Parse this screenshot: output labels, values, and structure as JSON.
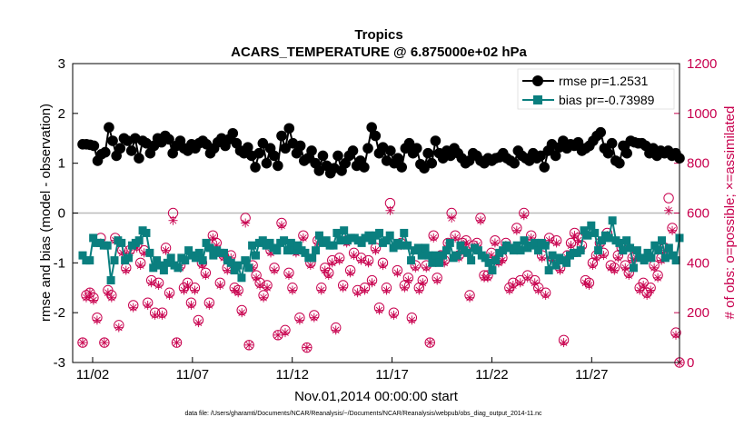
{
  "chart_data": {
    "type": "line",
    "title": "Tropics",
    "subtitle": "ACARS_TEMPERATURE @ 6.875000e+02 hPa",
    "xlabel": "Nov.01,2014 00:00:00 start",
    "ylabel": "rmse and bias (model - observation)",
    "ylabel_right": "# of obs: o=possible; ×=assimilated",
    "footnote": "data file: /Users/gharamti/Documents/NCAR/Reanalysis/~/Documents/NCAR/Reanalysis/webpub/obs_diag_output_2014-11.nc",
    "xlim": [
      0.5,
      30.9
    ],
    "ylim": [
      -3,
      3
    ],
    "ylim_right": [
      0,
      1200
    ],
    "x_ticks": [
      {
        "v": 1.5,
        "label": "11/02"
      },
      {
        "v": 6.5,
        "label": "11/07"
      },
      {
        "v": 11.5,
        "label": "11/12"
      },
      {
        "v": 16.5,
        "label": "11/17"
      },
      {
        "v": 21.5,
        "label": "11/22"
      },
      {
        "v": 26.5,
        "label": "11/27"
      }
    ],
    "y_ticks": [
      {
        "v": -3,
        "label": "-3"
      },
      {
        "v": -2,
        "label": "-2"
      },
      {
        "v": -1,
        "label": "-1"
      },
      {
        "v": 0,
        "label": "0"
      },
      {
        "v": 1,
        "label": "1"
      },
      {
        "v": 2,
        "label": "2"
      },
      {
        "v": 3,
        "label": "3"
      }
    ],
    "y_ticks_right": [
      {
        "v": 0,
        "label": "0"
      },
      {
        "v": 200,
        "label": "200"
      },
      {
        "v": 400,
        "label": "400"
      },
      {
        "v": 600,
        "label": "600"
      },
      {
        "v": 800,
        "label": "800"
      },
      {
        "v": 1000,
        "label": "1000"
      },
      {
        "v": 1200,
        "label": "1200"
      }
    ],
    "series": [
      {
        "name": "rmse pr=1.2531",
        "color": "#000000",
        "marker": "circle",
        "values": [
          1.38,
          1.38,
          1.37,
          1.35,
          1.05,
          1.18,
          1.22,
          1.72,
          1.45,
          1.15,
          1.3,
          1.5,
          1.45,
          1.25,
          1.5,
          1.1,
          1.45,
          1.4,
          1.2,
          1.35,
          1.5,
          1.42,
          1.55,
          1.48,
          1.2,
          1.35,
          1.45,
          1.3,
          1.25,
          1.38,
          1.3,
          1.4,
          1.45,
          1.38,
          1.2,
          1.3,
          1.42,
          1.5,
          1.35,
          1.48,
          1.6,
          1.4,
          1.25,
          1.2,
          1.32,
          1.15,
          0.92,
          1.2,
          1.4,
          1.0,
          1.3,
          1.15,
          0.95,
          1.55,
          1.3,
          1.7,
          1.4,
          1.2,
          1.35,
          1.05,
          1.1,
          1.25,
          1.0,
          0.85,
          1.15,
          0.95,
          0.8,
          0.9,
          1.15,
          0.85,
          1.0,
          1.15,
          1.25,
          0.95,
          1.05,
          0.92,
          1.3,
          1.72,
          1.55,
          1.2,
          1.32,
          1.05,
          1.25,
          1.0,
          1.1,
          0.92,
          1.3,
          1.4,
          1.2,
          1.3,
          0.98,
          0.9,
          1.2,
          1.0,
          1.45,
          1.2,
          1.1,
          1.25,
          1.15,
          1.3,
          1.2,
          1.1,
          1.0,
          1.05,
          1.2,
          1.15,
          1.05,
          1.0,
          1.1,
          1.05,
          1.1,
          1.12,
          1.2,
          1.1,
          1.05,
          1.0,
          1.25,
          1.15,
          1.1,
          1.05,
          1.2,
          1.1,
          1.15,
          0.92,
          1.25,
          1.38,
          1.15,
          1.32,
          1.45,
          1.3,
          1.38,
          1.35,
          1.42,
          1.25,
          1.3,
          1.35,
          1.45,
          1.55,
          1.62,
          1.3,
          1.2,
          1.4,
          1.05,
          1.0,
          1.35,
          1.2,
          1.45,
          1.42,
          1.4,
          1.4,
          1.35,
          1.2,
          1.3,
          1.15,
          1.25,
          1.2,
          1.25,
          1.15,
          1.2,
          1.1
        ]
      },
      {
        "name": "bias pr=-0.73989",
        "color": "#0a7f7f",
        "marker": "square",
        "values": [
          -0.85,
          -0.95,
          -0.95,
          -0.5,
          -0.6,
          -0.6,
          -0.65,
          -0.65,
          -1.35,
          -0.95,
          -0.55,
          -0.6,
          -0.95,
          -0.9,
          -0.65,
          -0.6,
          -0.55,
          -0.35,
          -0.4,
          -0.8,
          -1.1,
          -0.95,
          -1.05,
          -1.15,
          -1.0,
          -0.9,
          -1.05,
          -1.1,
          -0.9,
          -0.95,
          -0.75,
          -0.85,
          -0.9,
          -0.8,
          -0.95,
          -0.6,
          -0.7,
          -0.85,
          -0.75,
          -0.8,
          -0.8,
          -0.95,
          -1.0,
          -1.15,
          -1.05,
          -1.3,
          -0.95,
          -1.1,
          -0.65,
          -0.85,
          -0.6,
          -0.55,
          -0.65,
          -0.6,
          -0.7,
          -0.75,
          -0.6,
          -0.55,
          -0.75,
          -0.6,
          -0.75,
          -0.65,
          -0.75,
          -0.8,
          -0.9,
          -0.9,
          -0.75,
          -0.45,
          -0.6,
          -0.55,
          -0.65,
          -0.65,
          -0.4,
          -0.55,
          -0.35,
          -0.55,
          -0.5,
          -0.5,
          -0.55,
          -0.6,
          -0.5,
          -0.45,
          -0.55,
          -0.45,
          -0.4,
          -0.6,
          -0.55,
          -0.45,
          -0.7,
          -0.6,
          -0.65,
          -0.4,
          -0.65,
          -0.95,
          -0.75,
          -0.7,
          -0.85,
          -0.7,
          -0.85,
          -1.0,
          -0.85,
          -1.0,
          -0.85,
          -0.75,
          -0.6,
          -0.9,
          -0.85,
          -0.65,
          -0.75,
          -0.8,
          -0.95,
          -0.7,
          -0.75,
          -0.85,
          -0.9,
          -1.0,
          -1.15,
          -0.95,
          -0.8,
          -0.75,
          -0.65,
          -0.7,
          -0.75,
          -0.65,
          -0.75,
          -0.55,
          -0.7,
          -0.65,
          -0.6,
          -0.75,
          -0.6,
          -0.65,
          -1.15,
          -0.85,
          -1.05,
          -0.9,
          -0.95,
          -1.0,
          -0.85,
          -0.8,
          -0.8,
          -0.75,
          -0.35,
          -0.45,
          -0.25,
          -0.4,
          -0.75,
          -0.55,
          -0.45,
          -0.5,
          -0.15,
          -0.55,
          -0.6,
          -0.75,
          -0.55,
          -0.7,
          -1.1,
          -0.75,
          -0.9,
          -0.95,
          -0.8,
          -0.9,
          -0.65,
          -0.75,
          -0.55,
          -0.9,
          -0.7,
          -0.85,
          -0.95,
          -0.5
        ]
      }
    ],
    "obs_possible": [
      80,
      270,
      280,
      260,
      180,
      500,
      80,
      290,
      270,
      500,
      150,
      450,
      380,
      450,
      230,
      470,
      400,
      450,
      240,
      330,
      200,
      320,
      200,
      460,
      280,
      600,
      80,
      390,
      300,
      320,
      240,
      300,
      170,
      400,
      360,
      240,
      510,
      480,
      320,
      430,
      380,
      430,
      300,
      290,
      210,
      580,
      70,
      390,
      350,
      320,
      270,
      310,
      450,
      380,
      110,
      560,
      130,
      360,
      300,
      450,
      180,
      510,
      60,
      400,
      190,
      490,
      300,
      380,
      360,
      410,
      140,
      420,
      310,
      490,
      370,
      440,
      290,
      420,
      300,
      410,
      330,
      460,
      220,
      400,
      300,
      640,
      200,
      370,
      480,
      310,
      340,
      180,
      390,
      300,
      330,
      390,
      80,
      510,
      340,
      430,
      410,
      480,
      600,
      510,
      430,
      480,
      490,
      270,
      470,
      480,
      580,
      350,
      350,
      440,
      490,
      410,
      420,
      480,
      300,
      320,
      540,
      330,
      600,
      350,
      510,
      330,
      300,
      430,
      280,
      500,
      420,
      490,
      380,
      90,
      430,
      480,
      520,
      500,
      470,
      330,
      320,
      400,
      430,
      480,
      440,
      520,
      390,
      380,
      430,
      460,
      390,
      360,
      420,
      430,
      300,
      320,
      280,
      300,
      390,
      350,
      420,
      460,
      660,
      540,
      120,
      0
    ],
    "obs_assimilated": [
      80,
      260,
      280,
      250,
      170,
      480,
      80,
      280,
      260,
      490,
      140,
      440,
      370,
      440,
      220,
      460,
      390,
      440,
      230,
      320,
      190,
      310,
      190,
      450,
      270,
      570,
      80,
      380,
      290,
      310,
      230,
      290,
      160,
      390,
      350,
      230,
      500,
      470,
      310,
      420,
      370,
      420,
      290,
      280,
      200,
      560,
      70,
      380,
      340,
      310,
      260,
      300,
      440,
      370,
      110,
      550,
      120,
      350,
      290,
      440,
      170,
      500,
      60,
      390,
      180,
      480,
      290,
      370,
      350,
      400,
      130,
      410,
      300,
      480,
      360,
      430,
      280,
      410,
      290,
      400,
      320,
      450,
      210,
      390,
      290,
      610,
      190,
      360,
      470,
      300,
      330,
      170,
      380,
      290,
      320,
      380,
      80,
      500,
      330,
      420,
      400,
      470,
      580,
      500,
      420,
      470,
      480,
      260,
      460,
      470,
      570,
      340,
      340,
      430,
      480,
      400,
      410,
      470,
      290,
      310,
      530,
      320,
      590,
      340,
      500,
      320,
      290,
      420,
      270,
      490,
      410,
      480,
      370,
      80,
      420,
      470,
      510,
      490,
      460,
      320,
      310,
      390,
      420,
      470,
      430,
      510,
      380,
      370,
      420,
      450,
      380,
      350,
      410,
      420,
      290,
      310,
      270,
      290,
      380,
      340,
      410,
      450,
      610,
      530,
      110,
      0
    ]
  }
}
